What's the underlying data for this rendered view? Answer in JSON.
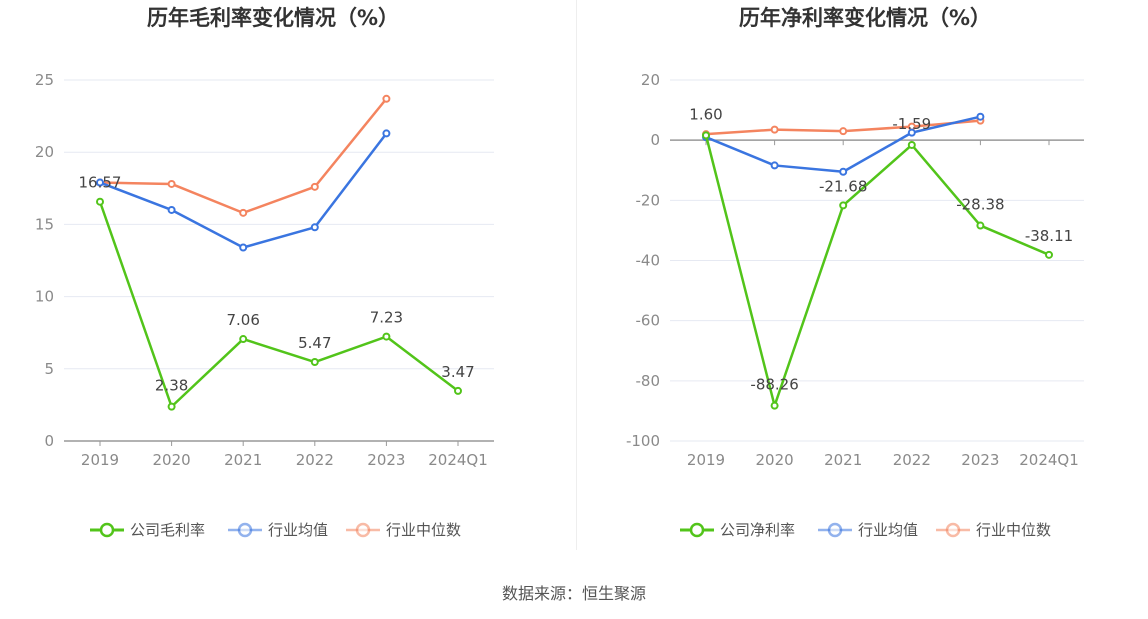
{
  "source": "数据来源：恒生聚源",
  "colors": {
    "company": "#52c41a",
    "industry_avg": "#3a75e0",
    "industry_median": "#f4845f",
    "grid": "#e6e9f2",
    "axis": "#999999"
  },
  "chart_data": [
    {
      "type": "line",
      "title": "历年毛利率变化情况（%）",
      "categories": [
        "2019",
        "2020",
        "2021",
        "2022",
        "2023",
        "2024Q1"
      ],
      "ylim": [
        0,
        25
      ],
      "yticks": [
        "0",
        "5",
        "10",
        "15",
        "20",
        "25"
      ],
      "grid": true,
      "legend_position": "bottom",
      "series": [
        {
          "name": "公司毛利率",
          "color": "#52c41a",
          "values": [
            16.57,
            2.38,
            7.06,
            5.47,
            7.23,
            3.47
          ],
          "labels": [
            "16.57",
            "2.38",
            "7.06",
            "5.47",
            "7.23",
            "3.47"
          ]
        },
        {
          "name": "行业均值",
          "color": "#3a75e0",
          "values": [
            17.9,
            16.0,
            13.4,
            14.8,
            21.3,
            null
          ]
        },
        {
          "name": "行业中位数",
          "color": "#f4845f",
          "values": [
            17.9,
            17.8,
            15.8,
            17.6,
            23.7,
            null
          ]
        }
      ]
    },
    {
      "type": "line",
      "title": "历年净利率变化情况（%）",
      "categories": [
        "2019",
        "2020",
        "2021",
        "2022",
        "2023",
        "2024Q1"
      ],
      "ylim": [
        -100,
        20
      ],
      "yticks": [
        "-100",
        "-80",
        "-60",
        "-40",
        "-20",
        "0",
        "20"
      ],
      "grid": true,
      "legend_position": "bottom",
      "series": [
        {
          "name": "公司净利率",
          "color": "#52c41a",
          "values": [
            1.6,
            -88.26,
            -21.68,
            -1.59,
            -28.38,
            -38.11
          ],
          "labels": [
            "1.60",
            "-88.26",
            "-21.68",
            "-1.59",
            "-28.38",
            "-38.11"
          ]
        },
        {
          "name": "行业均值",
          "color": "#3a75e0",
          "values": [
            1.0,
            -8.4,
            -10.5,
            2.5,
            7.8,
            null
          ]
        },
        {
          "name": "行业中位数",
          "color": "#f4845f",
          "values": [
            2.0,
            3.5,
            3.0,
            4.5,
            6.5,
            null
          ]
        }
      ]
    }
  ]
}
